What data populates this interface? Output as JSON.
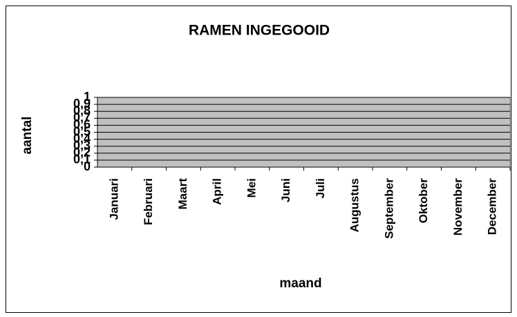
{
  "chart_data": {
    "type": "bar",
    "title": "RAMEN INGEGOOID",
    "x_label": "maand",
    "y_label": "aantal",
    "categories": [
      "Januari",
      "Februari",
      "Maart",
      "April",
      "Mei",
      "Juni",
      "Juli",
      "Augustus",
      "September",
      "Oktober",
      "November",
      "December"
    ],
    "values": [
      null,
      null,
      null,
      null,
      null,
      null,
      null,
      null,
      null,
      null,
      null,
      null
    ],
    "color": "#9999ff",
    "ylim": [
      0,
      1
    ],
    "yticks": [
      0,
      {
        "value": 0.1,
        "label": "0,1"
      },
      {
        "value": 0.2,
        "label": "0,2"
      },
      {
        "value": 0.3,
        "label": "0,3"
      },
      {
        "value": 0.4,
        "label": "0,4"
      },
      {
        "value": 0.5,
        "label": "0,5"
      },
      {
        "value": 0.6,
        "label": "0,6"
      },
      {
        "value": 0.7,
        "label": "0,7"
      },
      {
        "value": 0.8,
        "label": "0,8"
      },
      {
        "value": 0.9,
        "label": "0,9"
      },
      1
    ],
    "grid": true
  }
}
